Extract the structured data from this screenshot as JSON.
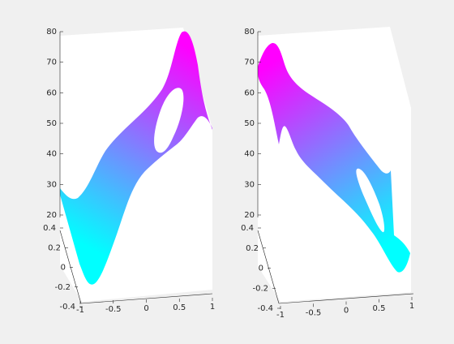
{
  "figure": {
    "background": "#f0f0f0",
    "axes_background": "#ffffff",
    "tick_color": "#262626"
  },
  "chart_data": [
    {
      "type": "surface",
      "title": "",
      "xlabel": "",
      "ylabel": "",
      "zlabel": "",
      "xlim": [
        -1,
        1
      ],
      "ylim": [
        -0.4,
        0.4
      ],
      "zlim": [
        20,
        80
      ],
      "x_ticks": [
        "-1",
        "-0.5",
        "0",
        "0.5",
        "1"
      ],
      "y_ticks": [
        "-0.4",
        "-0.2",
        "0",
        "0.2",
        "0.4"
      ],
      "z_ticks": [
        "20",
        "30",
        "40",
        "50",
        "60",
        "70",
        "80"
      ],
      "colormap": "cool",
      "color_range": [
        "#00ffff",
        "#ff00ff"
      ],
      "grid": false,
      "legend": "none",
      "has_hole": true
    },
    {
      "type": "surface",
      "title": "",
      "xlabel": "",
      "ylabel": "",
      "zlabel": "",
      "xlim": [
        -1,
        1
      ],
      "ylim": [
        -0.4,
        0.4
      ],
      "zlim": [
        20,
        80
      ],
      "x_ticks": [
        "-1",
        "-0.5",
        "0",
        "0.5",
        "1"
      ],
      "y_ticks": [
        "-0.4",
        "-0.2",
        "0",
        "0.2",
        "0.4"
      ],
      "z_ticks": [
        "20",
        "30",
        "40",
        "50",
        "60",
        "70",
        "80"
      ],
      "colormap": "cool",
      "color_range": [
        "#00ffff",
        "#ff00ff"
      ],
      "grid": false,
      "legend": "none",
      "has_hole": true
    }
  ]
}
